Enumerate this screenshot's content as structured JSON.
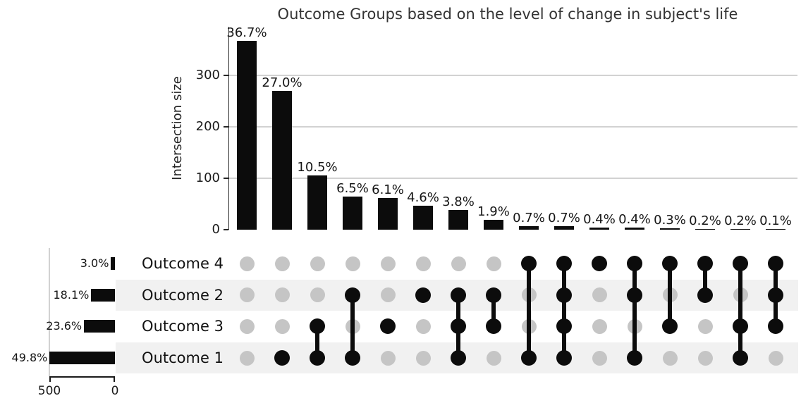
{
  "chart_data": {
    "type": "upset",
    "title": "Outcome Groups based on the level of change in subject's life",
    "intersection_axis": {
      "label": "Intersection size",
      "tick_labels": [
        "0",
        "100",
        "200",
        "300"
      ],
      "tick_values": [
        0,
        100,
        200,
        300
      ],
      "ylim": [
        0,
        395
      ],
      "grid": true
    },
    "set_axis": {
      "tick_labels": [
        "500",
        "0"
      ],
      "tick_values": [
        500,
        0
      ],
      "xlim": [
        500,
        0
      ]
    },
    "sets": [
      {
        "name": "Outcome 4",
        "pct": "3.0%",
        "value": 30
      },
      {
        "name": "Outcome 2",
        "pct": "18.1%",
        "value": 181
      },
      {
        "name": "Outcome 3",
        "pct": "23.6%",
        "value": 236
      },
      {
        "name": "Outcome 1",
        "pct": "49.8%",
        "value": 498
      }
    ],
    "intersections": [
      {
        "pct": "36.7%",
        "value": 367,
        "sets": []
      },
      {
        "pct": "27.0%",
        "value": 270,
        "sets": [
          "Outcome 1"
        ]
      },
      {
        "pct": "10.5%",
        "value": 105,
        "sets": [
          "Outcome 3",
          "Outcome 1"
        ]
      },
      {
        "pct": "6.5%",
        "value": 65,
        "sets": [
          "Outcome 2",
          "Outcome 1"
        ]
      },
      {
        "pct": "6.1%",
        "value": 61,
        "sets": [
          "Outcome 3"
        ]
      },
      {
        "pct": "4.6%",
        "value": 46,
        "sets": [
          "Outcome 2"
        ]
      },
      {
        "pct": "3.8%",
        "value": 38,
        "sets": [
          "Outcome 2",
          "Outcome 3",
          "Outcome 1"
        ]
      },
      {
        "pct": "1.9%",
        "value": 19,
        "sets": [
          "Outcome 2",
          "Outcome 3"
        ]
      },
      {
        "pct": "0.7%",
        "value": 7,
        "sets": [
          "Outcome 4",
          "Outcome 1"
        ]
      },
      {
        "pct": "0.7%",
        "value": 7,
        "sets": [
          "Outcome 4",
          "Outcome 2",
          "Outcome 3",
          "Outcome 1"
        ]
      },
      {
        "pct": "0.4%",
        "value": 4,
        "sets": [
          "Outcome 4"
        ]
      },
      {
        "pct": "0.4%",
        "value": 4,
        "sets": [
          "Outcome 4",
          "Outcome 2",
          "Outcome 1"
        ]
      },
      {
        "pct": "0.3%",
        "value": 3,
        "sets": [
          "Outcome 4",
          "Outcome 3"
        ]
      },
      {
        "pct": "0.2%",
        "value": 2,
        "sets": [
          "Outcome 4",
          "Outcome 2"
        ]
      },
      {
        "pct": "0.2%",
        "value": 2,
        "sets": [
          "Outcome 4",
          "Outcome 3",
          "Outcome 1"
        ]
      },
      {
        "pct": "0.1%",
        "value": 1,
        "sets": [
          "Outcome 4",
          "Outcome 2",
          "Outcome 3"
        ]
      }
    ],
    "colors": {
      "bar": "#0c0c0c",
      "dot_active": "#0c0c0c",
      "dot_inactive": "#c5c5c5",
      "stripe": "#f1f1f1",
      "gridline": "#d2d2d2",
      "axis": "#262626"
    },
    "legend": "none"
  }
}
